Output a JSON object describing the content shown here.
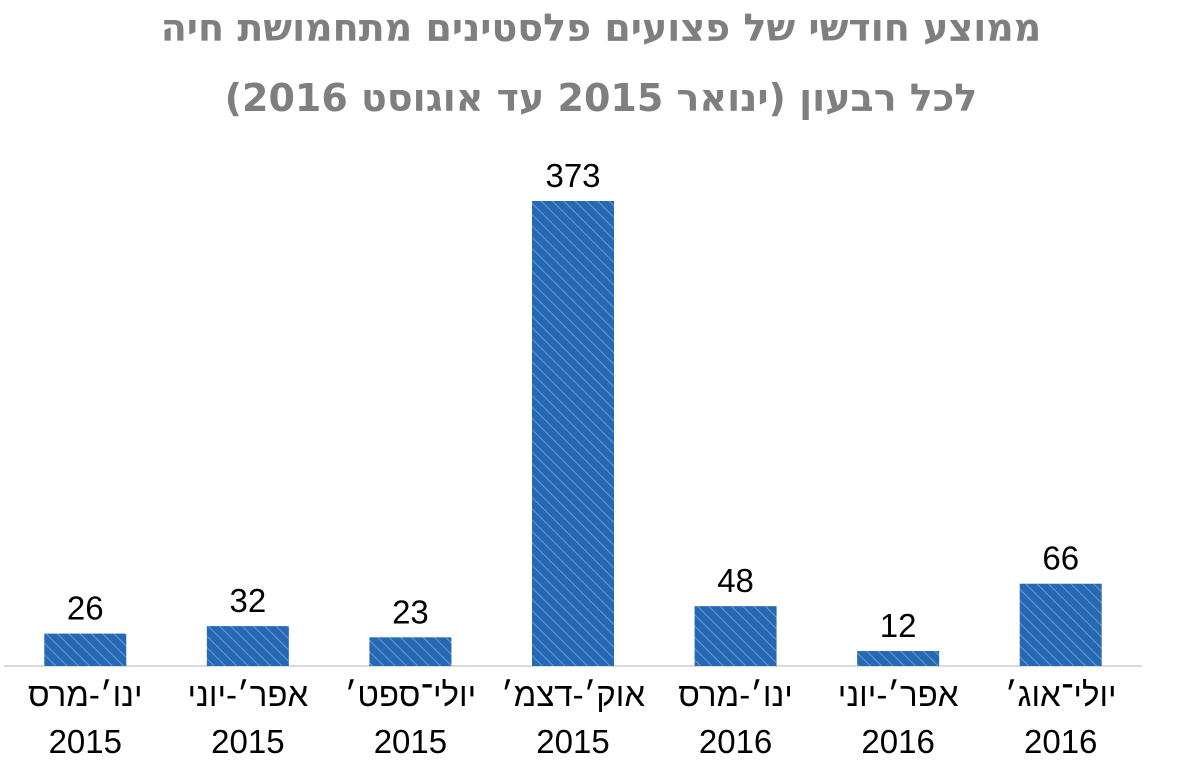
{
  "title_line1": "ממוצע חודשי של פצועים פלסטינים מתחמושת חיה",
  "title_line2": "לכל רבעון (ינואר 2015 עד אוגוסט 2016)",
  "colors": {
    "bar": "#2568b4",
    "hatch": "#6b9ad3",
    "title": "#7f7f7f",
    "axis": "#d9d9d9"
  },
  "chart_data": {
    "type": "bar",
    "title": "ממוצע חודשי של פצועים פלסטינים מתחמושת חיה לכל רבעון (ינואר 2015 עד אוגוסט 2016)",
    "categories": [
      [
        "ינו׳-מרס",
        "2015"
      ],
      [
        "אפר׳-יוני",
        "2015"
      ],
      [
        "יולי־ספט׳",
        "2015"
      ],
      [
        "אוק׳-דצמ׳",
        "2015"
      ],
      [
        "ינו׳-מרס",
        "2016"
      ],
      [
        "אפר׳-יוני",
        "2016"
      ],
      [
        "יולי־אוג׳",
        "2016"
      ]
    ],
    "values": [
      26,
      32,
      23,
      373,
      48,
      12,
      66
    ],
    "ylim": [
      0,
      400
    ],
    "grid": false,
    "legend": "none"
  }
}
